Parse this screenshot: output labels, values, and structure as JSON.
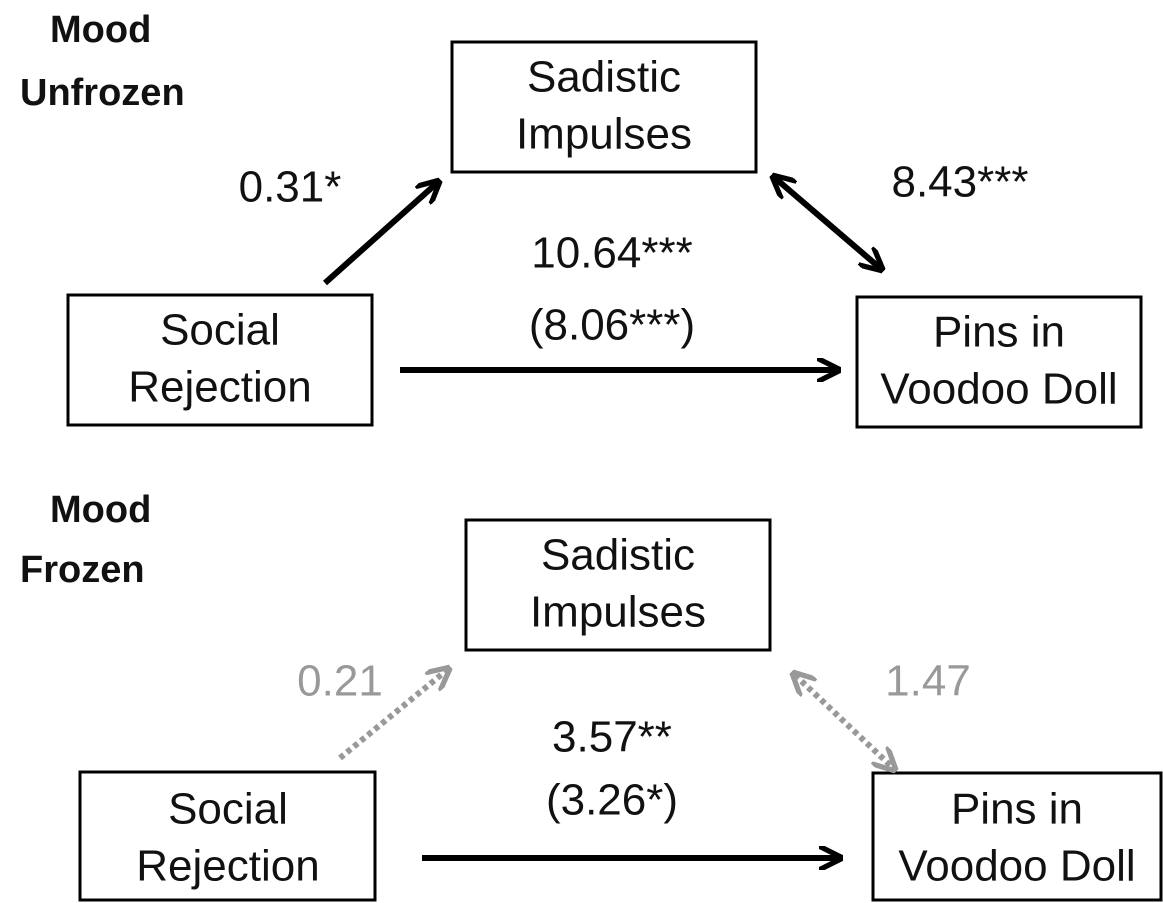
{
  "panels": [
    {
      "title": [
        "Mood",
        "Unfrozen"
      ],
      "nodes": {
        "mediator": [
          "Sadistic",
          "Impulses"
        ],
        "predictor": [
          "Social",
          "Rejection"
        ],
        "outcome": [
          "Pins in",
          "Voodoo Doll"
        ]
      },
      "paths": {
        "a": "0.31*",
        "b": "8.43***",
        "c": "10.64***",
        "c_prime": "(8.06***)"
      }
    },
    {
      "title": [
        "Mood",
        "Frozen"
      ],
      "nodes": {
        "mediator": [
          "Sadistic",
          "Impulses"
        ],
        "predictor": [
          "Social",
          "Rejection"
        ],
        "outcome": [
          "Pins in",
          "Voodoo Doll"
        ]
      },
      "paths": {
        "a": "0.21",
        "b": "1.47",
        "c": "3.57**",
        "c_prime": "(3.26*)"
      }
    }
  ]
}
